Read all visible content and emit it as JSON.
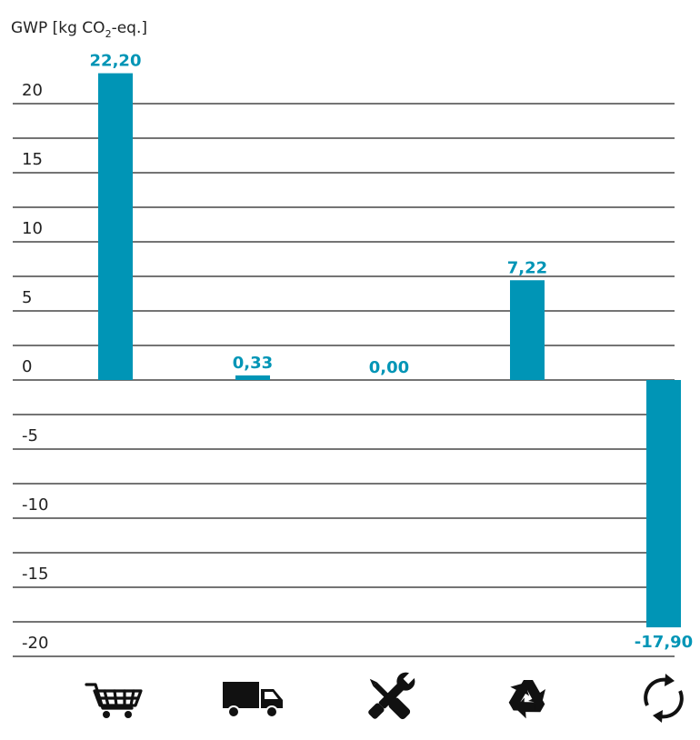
{
  "chart_data": {
    "type": "bar",
    "ylabel_main": "GWP [kg CO",
    "ylabel_sub": "2",
    "ylabel_end": "-eq.]",
    "categories": [
      "purchase-icon",
      "transport-icon",
      "tools-icon",
      "recycling-icon",
      "cycle-icon"
    ],
    "values": [
      22.2,
      0.33,
      0.0,
      7.22,
      -17.9
    ],
    "value_labels": [
      "22,20",
      "0,33",
      "0,00",
      "7,22",
      "-17,90"
    ],
    "ylim": [
      -20,
      22
    ],
    "yticks": [
      20,
      15,
      10,
      5,
      0,
      -5,
      -10,
      -15,
      -20
    ],
    "ytick_labels": [
      "20",
      "15",
      "10",
      "5",
      "0",
      "-5",
      "-10",
      "-15",
      "-20"
    ],
    "grid": true,
    "colors": {
      "bar": "#0095b6",
      "grid": "#222222",
      "text": "#222222",
      "icon": "#111111"
    }
  }
}
